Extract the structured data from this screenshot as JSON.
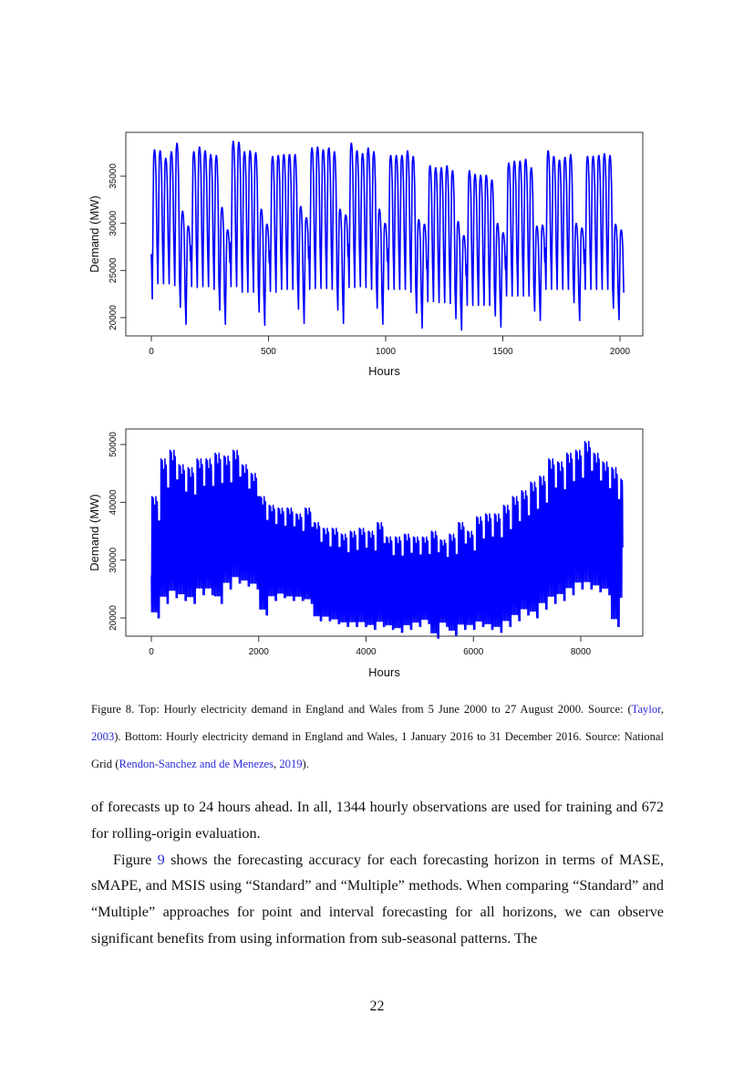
{
  "colors": {
    "series": "#0000ff",
    "link": "#2a2ad8"
  },
  "chart_data": [
    {
      "type": "line",
      "position": "top",
      "xlabel": "Hours",
      "ylabel": "Demand (MW)",
      "xlim": [
        0,
        2016
      ],
      "ylim": [
        18500,
        39000
      ],
      "xticks": [
        0,
        500,
        1000,
        1500,
        2000
      ],
      "yticks": [
        20000,
        25000,
        30000,
        35000
      ],
      "grid": false,
      "series_color": "#0000ff",
      "daily_peaks": [
        37800,
        37700,
        36900,
        37600,
        38500,
        31300,
        29700,
        37600,
        38100,
        37700,
        37300,
        37200,
        31700,
        29300,
        38700,
        38600,
        37600,
        37700,
        37500,
        31500,
        29900,
        37100,
        37200,
        37300,
        37300,
        37300,
        31800,
        30600,
        38000,
        38100,
        37800,
        38000,
        37600,
        31500,
        30900,
        38500,
        37700,
        37400,
        38000,
        37600,
        31500,
        30000,
        37200,
        37200,
        37200,
        37700,
        37100,
        30400,
        29900,
        36100,
        35900,
        35900,
        36100,
        35600,
        30200,
        28700,
        35600,
        35200,
        35100,
        35100,
        34600,
        30000,
        29000,
        36400,
        36600,
        36600,
        36800,
        35900,
        29700,
        29800,
        37700,
        37100,
        36700,
        37000,
        37300,
        30000,
        29500,
        37100,
        37100,
        37200,
        37400,
        37200,
        29900,
        29300
      ],
      "daily_troughs": [
        22000,
        23600,
        23600,
        23600,
        23400,
        21100,
        19300,
        23300,
        23200,
        23300,
        23300,
        23000,
        20800,
        19300,
        23300,
        23300,
        22700,
        22700,
        22700,
        20600,
        19200,
        22800,
        22700,
        23000,
        23000,
        23000,
        20900,
        19400,
        23000,
        23100,
        23100,
        23100,
        23000,
        20800,
        19400,
        23200,
        23200,
        23300,
        23200,
        23000,
        21000,
        19300,
        23000,
        23000,
        23000,
        23000,
        22700,
        20500,
        18900,
        21700,
        21700,
        21600,
        21600,
        21500,
        19900,
        18700,
        21300,
        21300,
        21300,
        21300,
        21300,
        20200,
        19000,
        22300,
        22300,
        22300,
        22300,
        22300,
        20700,
        19700,
        23000,
        23000,
        23000,
        23000,
        23000,
        21600,
        19700,
        23000,
        23000,
        23000,
        23000,
        23000,
        21000,
        19800
      ]
    },
    {
      "type": "line",
      "position": "bottom",
      "xlabel": "Hours",
      "ylabel": "Demand (MW)",
      "xlim": [
        0,
        8784
      ],
      "ylim": [
        16000,
        52500
      ],
      "xticks": [
        0,
        2000,
        4000,
        6000,
        8000
      ],
      "yticks": [
        20000,
        30000,
        40000,
        50000
      ],
      "grid": false,
      "series_color": "#0000ff",
      "weekly_max": [
        41000,
        47500,
        49000,
        46500,
        46000,
        47500,
        47500,
        48500,
        48000,
        49000,
        46500,
        45000,
        41000,
        39500,
        39000,
        39000,
        38000,
        39000,
        36500,
        35500,
        35500,
        34500,
        35000,
        35500,
        35000,
        36500,
        34000,
        34000,
        34500,
        34000,
        34000,
        35000,
        33500,
        34500,
        36500,
        35000,
        37500,
        38000,
        38000,
        39500,
        41000,
        42000,
        43500,
        44500,
        47500,
        47000,
        48500,
        49000,
        50500,
        48500,
        47000,
        46000,
        44000
      ],
      "weekly_min": [
        20000,
        22500,
        23500,
        23000,
        22500,
        24000,
        24000,
        22500,
        25000,
        26000,
        25500,
        25000,
        20500,
        23000,
        23500,
        23000,
        23000,
        22500,
        19500,
        19500,
        19000,
        18500,
        18500,
        18500,
        18000,
        18500,
        18000,
        17500,
        18000,
        18500,
        19000,
        16500,
        18500,
        17000,
        18000,
        18000,
        18500,
        18000,
        17500,
        18500,
        19500,
        20500,
        20000,
        21500,
        22500,
        23000,
        24000,
        25000,
        25000,
        24500,
        24000,
        18500,
        22500
      ]
    }
  ],
  "caption": {
    "segments": [
      {
        "text": "Figure 8. Top: Hourly electricity demand in England and Wales from 5 June 2000 to 27 August 2000. Source: (",
        "link": false
      },
      {
        "text": "Taylor",
        "link": true
      },
      {
        "text": ", ",
        "link": false
      },
      {
        "text": "2003",
        "link": true
      },
      {
        "text": "). Bottom: Hourly electricity demand in England and Wales, 1 January 2016 to 31 December 2016. Source: National Grid (",
        "link": false
      },
      {
        "text": "Rendon-Sanchez and de Menezes",
        "link": true
      },
      {
        "text": ", ",
        "link": false
      },
      {
        "text": "2019",
        "link": true
      },
      {
        "text": ").",
        "link": false
      }
    ]
  },
  "body": {
    "p1": "of forecasts up to 24 hours ahead. In all, 1344 hourly observations are used for training and 672 for rolling-origin evaluation.",
    "p2_before": "Figure ",
    "p2_link": "9",
    "p2_after": " shows the forecasting accuracy for each forecasting horizon in terms of MASE, sMAPE, and MSIS using “Standard” and “Multiple” methods. When comparing “Standard” and “Multiple” approaches for point and interval forecasting for all horizons, we can observe significant benefits from using information from sub-seasonal patterns. The"
  },
  "page_number": "22"
}
